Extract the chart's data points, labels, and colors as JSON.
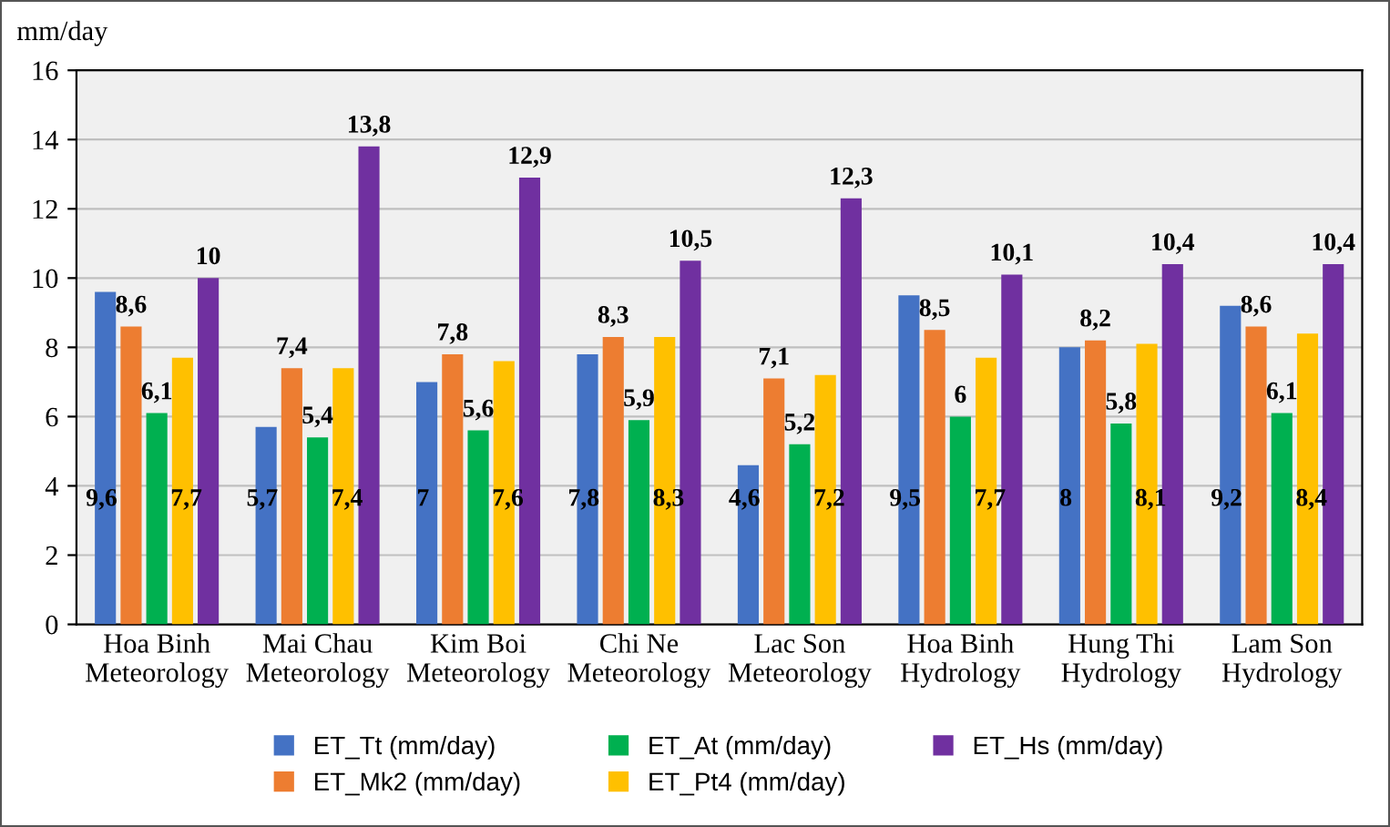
{
  "chart_data": {
    "type": "bar",
    "ylabel": "mm/day",
    "categories": [
      "Hoa Binh\nMeteorology",
      "Mai Chau\nMeteorology",
      "Kim Boi\nMeteorology",
      "Chi Ne\nMeteorology",
      "Lac Son\nMeteorology",
      "Hoa Binh\nHydrology",
      "Hung Thi\nHydrology",
      "Lam Son\nHydrology"
    ],
    "series": [
      {
        "name": "ET_Tt (mm/day)",
        "color": "#4472c4",
        "values": [
          9.6,
          5.7,
          7,
          7.8,
          4.6,
          9.5,
          8,
          9.2
        ],
        "value_labels": [
          "9,6",
          "5,7",
          "7",
          "7,8",
          "4,6",
          "9,5",
          "8",
          "9,2"
        ]
      },
      {
        "name": "ET_Mk2 (mm/day)",
        "color": "#ed7d31",
        "values": [
          8.6,
          7.4,
          7.8,
          8.3,
          7.1,
          8.5,
          8.2,
          8.6
        ],
        "value_labels": [
          "8,6",
          "7,4",
          "7,8",
          "8,3",
          "7,1",
          "8,5",
          "8,2",
          "8,6"
        ]
      },
      {
        "name": "ET_At (mm/day)",
        "color": "#00b050",
        "values": [
          6.1,
          5.4,
          5.6,
          5.9,
          5.2,
          6,
          5.8,
          6.1
        ],
        "value_labels": [
          "6,1",
          "5,4",
          "5,6",
          "5,9",
          "5,2",
          "6",
          "5,8",
          "6,1"
        ]
      },
      {
        "name": "ET_Pt4 (mm/day)",
        "color": "#ffc000",
        "values": [
          7.7,
          7.4,
          7.6,
          8.3,
          7.2,
          7.7,
          8.1,
          8.4
        ],
        "value_labels": [
          "7,7",
          "7,4",
          "7,6",
          "8,3",
          "7,2",
          "7,7",
          "8,1",
          "8,4"
        ]
      },
      {
        "name": "ET_Hs (mm/day)",
        "color": "#7030a0",
        "values": [
          10,
          13.8,
          12.9,
          10.5,
          12.3,
          10.1,
          10.4,
          10.4
        ],
        "value_labels": [
          "10",
          "13,8",
          "12,9",
          "10,5",
          "12,3",
          "10,1",
          "10,4",
          "10,4"
        ]
      }
    ],
    "ylim": [
      0,
      16
    ],
    "yticks": [
      0,
      2,
      4,
      6,
      8,
      10,
      12,
      14,
      16
    ],
    "grid": "y",
    "legend": "bottom"
  }
}
